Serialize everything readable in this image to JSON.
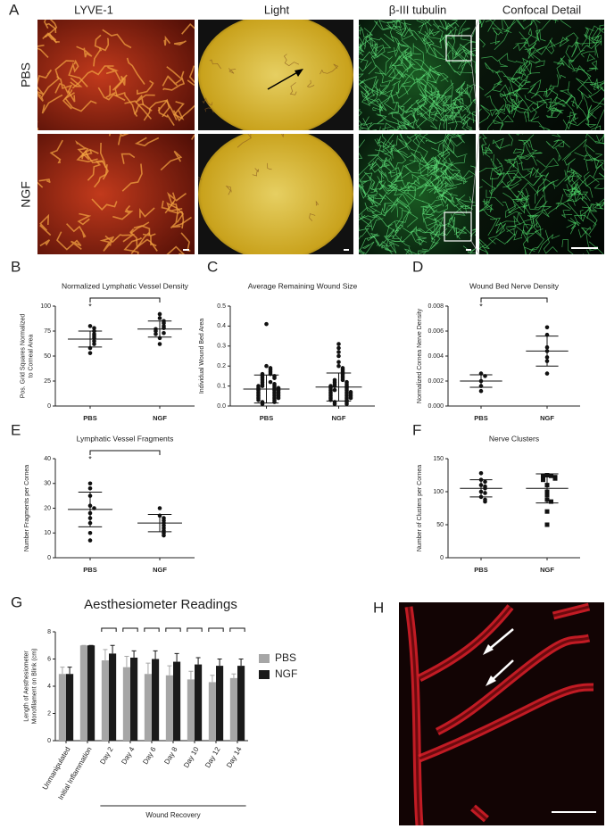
{
  "figure": {
    "A": {
      "label": "A",
      "columns": [
        "LYVE-1",
        "Light",
        "β-III tubulin",
        "Confocal Detail"
      ],
      "rows": [
        "PBS",
        "NGF"
      ]
    },
    "H": {
      "label": "H"
    }
  },
  "chart_data": [
    {
      "type": "dot",
      "panel": "B",
      "title": "Normalized Lymphatic Vessel Density",
      "ylabel": [
        "Pos. Grid Squares Normalized",
        "to Corneal Area"
      ],
      "categories": [
        "PBS",
        "NGF"
      ],
      "markers": [
        "circle",
        "circle"
      ],
      "points": [
        [
          80,
          78,
          75,
          72,
          70,
          68,
          65,
          62,
          58,
          53
        ],
        [
          92,
          88,
          85,
          83,
          80,
          78,
          77,
          75,
          73,
          72,
          68,
          62
        ]
      ],
      "mean": [
        67,
        77
      ],
      "sd": [
        8,
        8
      ],
      "significance": "*",
      "ylim": [
        0,
        100
      ],
      "yticks": [
        0,
        25,
        50,
        75,
        100
      ]
    },
    {
      "type": "dot",
      "panel": "C",
      "title": "Average Remaining Wound Size",
      "ylabel": "Individual Wound Bed Area",
      "categories": [
        "PBS",
        "NGF"
      ],
      "markers": [
        "circle",
        "circle"
      ],
      "points": [
        [
          0.41,
          0.2,
          0.19,
          0.18,
          0.17,
          0.16,
          0.16,
          0.15,
          0.15,
          0.14,
          0.14,
          0.13,
          0.12,
          0.12,
          0.11,
          0.11,
          0.1,
          0.1,
          0.1,
          0.09,
          0.09,
          0.09,
          0.08,
          0.08,
          0.08,
          0.07,
          0.07,
          0.07,
          0.06,
          0.06,
          0.06,
          0.05,
          0.05,
          0.05,
          0.04,
          0.04,
          0.04,
          0.03,
          0.03,
          0.02,
          0.02,
          0.01
        ],
        [
          0.31,
          0.29,
          0.27,
          0.25,
          0.22,
          0.2,
          0.19,
          0.18,
          0.17,
          0.16,
          0.15,
          0.14,
          0.13,
          0.13,
          0.12,
          0.12,
          0.11,
          0.11,
          0.1,
          0.1,
          0.1,
          0.09,
          0.09,
          0.08,
          0.08,
          0.08,
          0.07,
          0.07,
          0.07,
          0.06,
          0.06,
          0.06,
          0.05,
          0.05,
          0.05,
          0.04,
          0.04,
          0.04,
          0.03,
          0.03,
          0.02,
          0.02,
          0.01,
          0.01
        ]
      ],
      "mean": [
        0.085,
        0.095
      ],
      "sd": [
        0.07,
        0.07
      ],
      "ylim": [
        0,
        0.5
      ],
      "yticks": [
        {
          "value": 0,
          "label": "0.0"
        },
        0.1,
        0.2,
        0.3,
        0.4,
        0.5
      ]
    },
    {
      "type": "dot",
      "panel": "D",
      "title": "Wound Bed Nerve Density",
      "ylabel": "Normalized Cornea Nerve Density",
      "categories": [
        "PBS",
        "NGF"
      ],
      "markers": [
        "circle",
        "circle"
      ],
      "points": [
        [
          0.0026,
          0.0024,
          0.002,
          0.0016,
          0.0012
        ],
        [
          0.0063,
          0.0057,
          0.0047,
          0.0044,
          0.0039,
          0.0036,
          0.0026
        ]
      ],
      "mean": [
        0.002,
        0.0044
      ],
      "sd": [
        0.0005,
        0.0012
      ],
      "significance": "*",
      "ylim": [
        0,
        0.008
      ],
      "yticks": [
        {
          "value": 0,
          "label": "0.000"
        },
        {
          "value": 0.002,
          "label": "0.002"
        },
        {
          "value": 0.004,
          "label": "0.004"
        },
        {
          "value": 0.006,
          "label": "0.006"
        },
        {
          "value": 0.008,
          "label": "0.008"
        }
      ]
    },
    {
      "type": "dot",
      "panel": "E",
      "title": "Lymphatic Vessel Fragments",
      "ylabel": "Number Fragments per Cornea",
      "categories": [
        "PBS",
        "NGF"
      ],
      "markers": [
        "circle",
        "circle"
      ],
      "points": [
        [
          30,
          28,
          25,
          21,
          20,
          18,
          16,
          14,
          10,
          7
        ],
        [
          20,
          17,
          16,
          15,
          14,
          13,
          12,
          11,
          10,
          9
        ]
      ],
      "mean": [
        19.5,
        14
      ],
      "sd": [
        7,
        3.5
      ],
      "significance": "*",
      "ylim": [
        0,
        40
      ],
      "yticks": [
        0,
        10,
        20,
        30,
        40
      ]
    },
    {
      "type": "dot",
      "panel": "F",
      "title": "Nerve Clusters",
      "ylabel": "Number of Clusters per Cornea",
      "categories": [
        "PBS",
        "NGF"
      ],
      "markers": [
        "circle",
        "square"
      ],
      "points": [
        [
          128,
          118,
          115,
          110,
          108,
          105,
          100,
          98,
          92,
          88,
          85
        ],
        [
          125,
          124,
          123,
          122,
          120,
          118,
          110,
          100,
          95,
          88,
          85,
          70,
          50
        ]
      ],
      "mean": [
        105,
        105
      ],
      "sd": [
        13,
        22
      ],
      "ylim": [
        0,
        150
      ],
      "yticks": [
        0,
        50,
        100,
        150
      ]
    },
    {
      "type": "bar",
      "panel": "G",
      "title": "Aesthesiometer Readings",
      "ylabel": [
        "Length of Aesthesiometer",
        "Monofilament on Blink (cm)"
      ],
      "categories": [
        "Unmanipulated",
        "Initial Inflammation",
        "Day 2",
        "Day 4",
        "Day 6",
        "Day 8",
        "Day 10",
        "Day 12",
        "Day 14"
      ],
      "series": [
        {
          "name": "PBS",
          "color": "#a6a6a6",
          "values": [
            4.9,
            7,
            5.9,
            5.4,
            4.9,
            4.8,
            4.5,
            4.3,
            4.6
          ],
          "errors": [
            0.5,
            0,
            0.8,
            0.8,
            0.8,
            0.7,
            0.6,
            0.5,
            0.3
          ]
        },
        {
          "name": "NGF",
          "color": "#1a1a1a",
          "values": [
            4.9,
            7,
            6.4,
            6.1,
            6.0,
            5.8,
            5.6,
            5.5,
            5.5
          ],
          "errors": [
            0.5,
            0,
            0.6,
            0.5,
            0.6,
            0.6,
            0.5,
            0.5,
            0.5
          ]
        }
      ],
      "significant": [
        false,
        false,
        true,
        true,
        true,
        true,
        true,
        true,
        true
      ],
      "annotation": "Wound Recovery",
      "ylim": [
        0,
        8
      ],
      "yticks": [
        0,
        2,
        4,
        6,
        8
      ],
      "legend": "right"
    }
  ]
}
